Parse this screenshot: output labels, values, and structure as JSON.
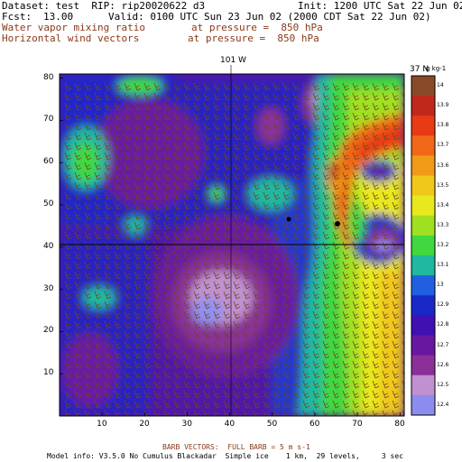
{
  "header": {
    "dataset": "Dataset: test  RIP: rip20020622 d3",
    "init": "Init: 1200 UTC Sat 22 Jun 02",
    "fcst_label": "Fcst:",
    "fcst_value": "13.00",
    "valid": "Valid: 0100 UTC Sun 23 Jun 02 (2000 CDT Sat 22 Jun 02)",
    "field1_name": "Water vapor mixing ratio",
    "field1_level": "at pressure =  850 hPa",
    "field2_name": "Horizontal wind vectors",
    "field2_level": "at pressure =  850 hPa"
  },
  "map": {
    "top_label": "101 W",
    "lat_label": "37 N",
    "x_ticks": [
      "10",
      "20",
      "30",
      "40",
      "50",
      "60",
      "70",
      "80"
    ],
    "y_ticks": [
      "10",
      "20",
      "30",
      "40",
      "50",
      "60",
      "70",
      "80"
    ]
  },
  "colorbar": {
    "units": "g kg-1",
    "labels": [
      "14",
      "13.9",
      "13.8",
      "13.7",
      "13.6",
      "13.5",
      "13.4",
      "13.3",
      "13.2",
      "13.1",
      "13",
      "12.9",
      "12.8",
      "12.7",
      "12.6",
      "12.5",
      "12.4"
    ],
    "colors": [
      "#8a4a2a",
      "#c0281c",
      "#e83a14",
      "#f06818",
      "#f09a18",
      "#f0c81a",
      "#e8e81e",
      "#a0e020",
      "#40d840",
      "#20b8a0",
      "#2060e0",
      "#1a28c8",
      "#4010b0",
      "#6818a0",
      "#8a3098",
      "#c090d0",
      "#8c8cf0"
    ]
  },
  "footer": {
    "barb_legend": "BARB VECTORS:  FULL BARB = 5 m s-1",
    "model_info": "Model info: V3.5.0 No Cumulus Blackadar  Simple ice    1 km,  29 levels,     3 sec"
  }
}
